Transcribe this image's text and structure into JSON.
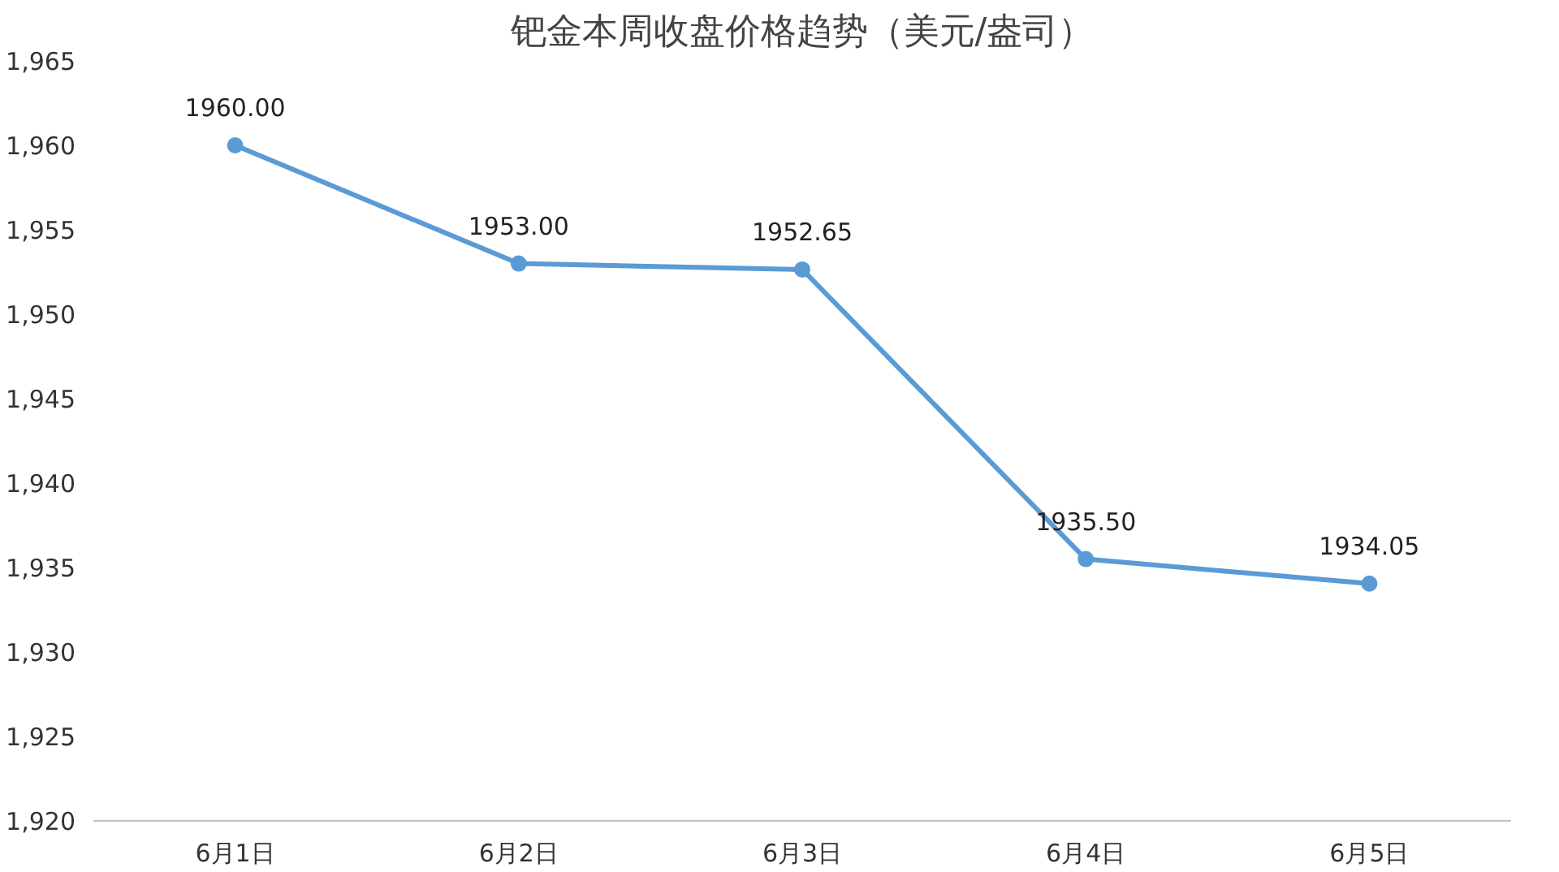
{
  "chart_data": {
    "type": "line",
    "title": "钯金本周收盘价格趋势（美元/盎司）",
    "categories": [
      "6月1日",
      "6月2日",
      "6月3日",
      "6月4日",
      "6月5日"
    ],
    "series": [
      {
        "color": "#5b9bd5",
        "values": [
          1960.0,
          1953.0,
          1952.65,
          1935.5,
          1934.05
        ]
      }
    ],
    "value_labels": [
      "1960.00",
      "1953.00",
      "1952.65",
      "1935.50",
      "1934.05"
    ],
    "ylim": [
      1920,
      1965
    ],
    "yticks": [
      {
        "value": 1920,
        "label": "1,920"
      },
      {
        "value": 1925,
        "label": "1,925"
      },
      {
        "value": 1930,
        "label": "1,930"
      },
      {
        "value": 1935,
        "label": "1,935"
      },
      {
        "value": 1940,
        "label": "1,940"
      },
      {
        "value": 1945,
        "label": "1,945"
      },
      {
        "value": 1950,
        "label": "1,950"
      },
      {
        "value": 1955,
        "label": "1,955"
      },
      {
        "value": 1960,
        "label": "1,960"
      },
      {
        "value": 1965,
        "label": "1,965"
      }
    ],
    "grid": false,
    "marker": "circle",
    "line_style": "solid"
  }
}
